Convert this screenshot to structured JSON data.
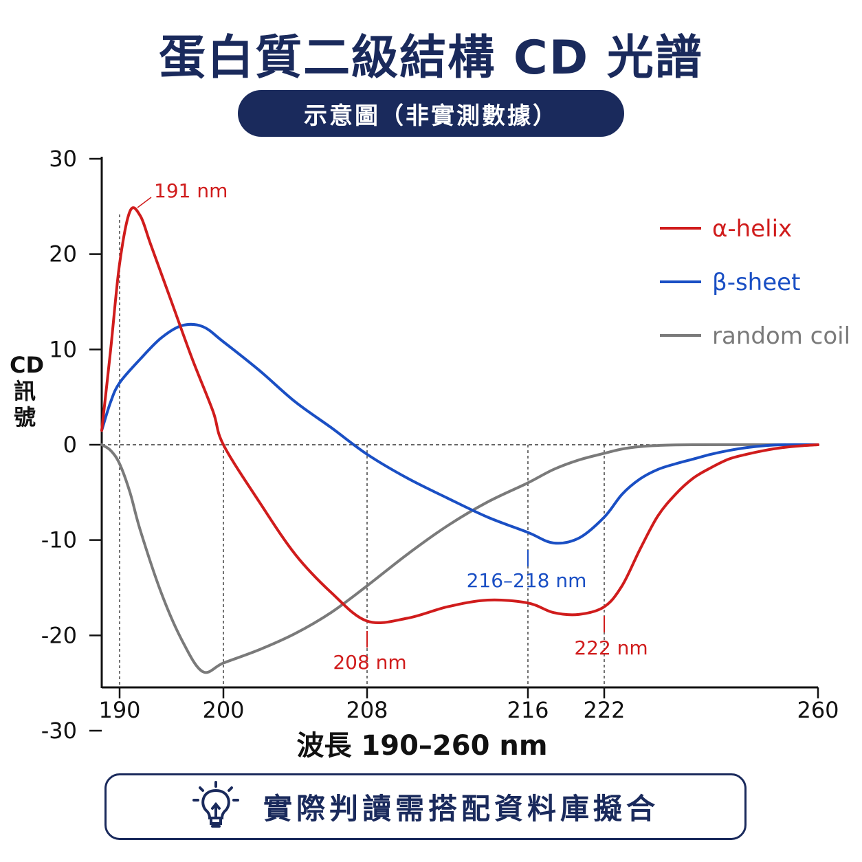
{
  "header": {
    "title": "蛋白質二級結構 CD 光譜",
    "subtitle": "示意圖（非實測數據）"
  },
  "footer": {
    "note": "實際判讀需搭配資料庫擬合",
    "icon": "lightbulb-icon"
  },
  "chart_data": {
    "type": "line",
    "xlabel": "波長 190–260 nm",
    "ylabel": "CD訊號",
    "ylim": [
      -30,
      30
    ],
    "xlim": [
      188,
      260
    ],
    "x_ticks": [
      "190",
      "200",
      "208",
      "216",
      "222",
      "260"
    ],
    "y_ticks": [
      "30",
      "20",
      "10",
      "0",
      "-10",
      "-20",
      "-30"
    ],
    "legend_position": "top-right",
    "grid": false,
    "series": [
      {
        "name": "α-helix",
        "color": "#d01c1c",
        "points": [
          [
            188,
            1.5
          ],
          [
            189,
            10
          ],
          [
            190,
            19
          ],
          [
            191,
            24.5
          ],
          [
            192,
            24
          ],
          [
            193,
            21
          ],
          [
            195,
            15
          ],
          [
            197,
            9
          ],
          [
            199,
            3.5
          ],
          [
            200,
            0
          ],
          [
            202,
            -6
          ],
          [
            204,
            -11.5
          ],
          [
            206,
            -15.5
          ],
          [
            208,
            -18.5
          ],
          [
            210,
            -18.2
          ],
          [
            212,
            -17
          ],
          [
            214,
            -16.3
          ],
          [
            216,
            -16.6
          ],
          [
            218,
            -17.6
          ],
          [
            220,
            -17.8
          ],
          [
            222,
            -17
          ],
          [
            224,
            -14.8
          ],
          [
            226,
            -11
          ],
          [
            228,
            -7.5
          ],
          [
            230,
            -5.2
          ],
          [
            232,
            -3.5
          ],
          [
            234,
            -2.4
          ],
          [
            236,
            -1.5
          ],
          [
            238,
            -1.0
          ],
          [
            240,
            -0.6
          ],
          [
            242,
            -0.3
          ],
          [
            244,
            -0.12
          ],
          [
            246,
            0
          ]
        ]
      },
      {
        "name": "β-sheet",
        "color": "#1a4fc4",
        "points": [
          [
            188,
            1.5
          ],
          [
            189,
            4.5
          ],
          [
            190,
            6.5
          ],
          [
            192,
            9
          ],
          [
            194,
            11.2
          ],
          [
            196,
            12.5
          ],
          [
            198,
            12.4
          ],
          [
            200,
            10.8
          ],
          [
            202,
            7.8
          ],
          [
            204,
            4.5
          ],
          [
            206,
            1.8
          ],
          [
            208,
            -1
          ],
          [
            210,
            -3.5
          ],
          [
            212,
            -5.6
          ],
          [
            214,
            -7.6
          ],
          [
            216,
            -9.2
          ],
          [
            218,
            -10.3
          ],
          [
            220,
            -9.8
          ],
          [
            222,
            -7.6
          ],
          [
            224,
            -5.2
          ],
          [
            226,
            -3.6
          ],
          [
            228,
            -2.6
          ],
          [
            230,
            -2.0
          ],
          [
            232,
            -1.5
          ],
          [
            234,
            -1.0
          ],
          [
            236,
            -0.6
          ],
          [
            238,
            -0.3
          ],
          [
            240,
            -0.1
          ],
          [
            242,
            0
          ],
          [
            246,
            0
          ]
        ]
      },
      {
        "name": "random coil",
        "color": "#7a7a7a",
        "points": [
          [
            188,
            0
          ],
          [
            189,
            -0.6
          ],
          [
            190,
            -2
          ],
          [
            191,
            -5
          ],
          [
            192,
            -9
          ],
          [
            194,
            -15.5
          ],
          [
            196,
            -20.5
          ],
          [
            198,
            -23.8
          ],
          [
            200,
            -22.9
          ],
          [
            202,
            -21.5
          ],
          [
            204,
            -19.8
          ],
          [
            206,
            -17.6
          ],
          [
            208,
            -14.8
          ],
          [
            210,
            -11.5
          ],
          [
            212,
            -8.5
          ],
          [
            214,
            -6
          ],
          [
            216,
            -4
          ],
          [
            218,
            -2.6
          ],
          [
            220,
            -1.6
          ],
          [
            222,
            -0.9
          ],
          [
            224,
            -0.45
          ],
          [
            226,
            -0.2
          ],
          [
            228,
            -0.08
          ],
          [
            232,
            0
          ],
          [
            246,
            0
          ]
        ]
      }
    ],
    "annotations": [
      {
        "label": "191 nm",
        "x": 190,
        "y": 24.5,
        "series": "α-helix"
      },
      {
        "label": "208 nm",
        "x": 208,
        "y": -18.5,
        "series": "α-helix"
      },
      {
        "label": "216–218 nm",
        "x": 216,
        "y": -10.3,
        "series": "β-sheet"
      },
      {
        "label": "222 nm",
        "x": 222,
        "y": -17,
        "series": "α-helix"
      }
    ]
  }
}
